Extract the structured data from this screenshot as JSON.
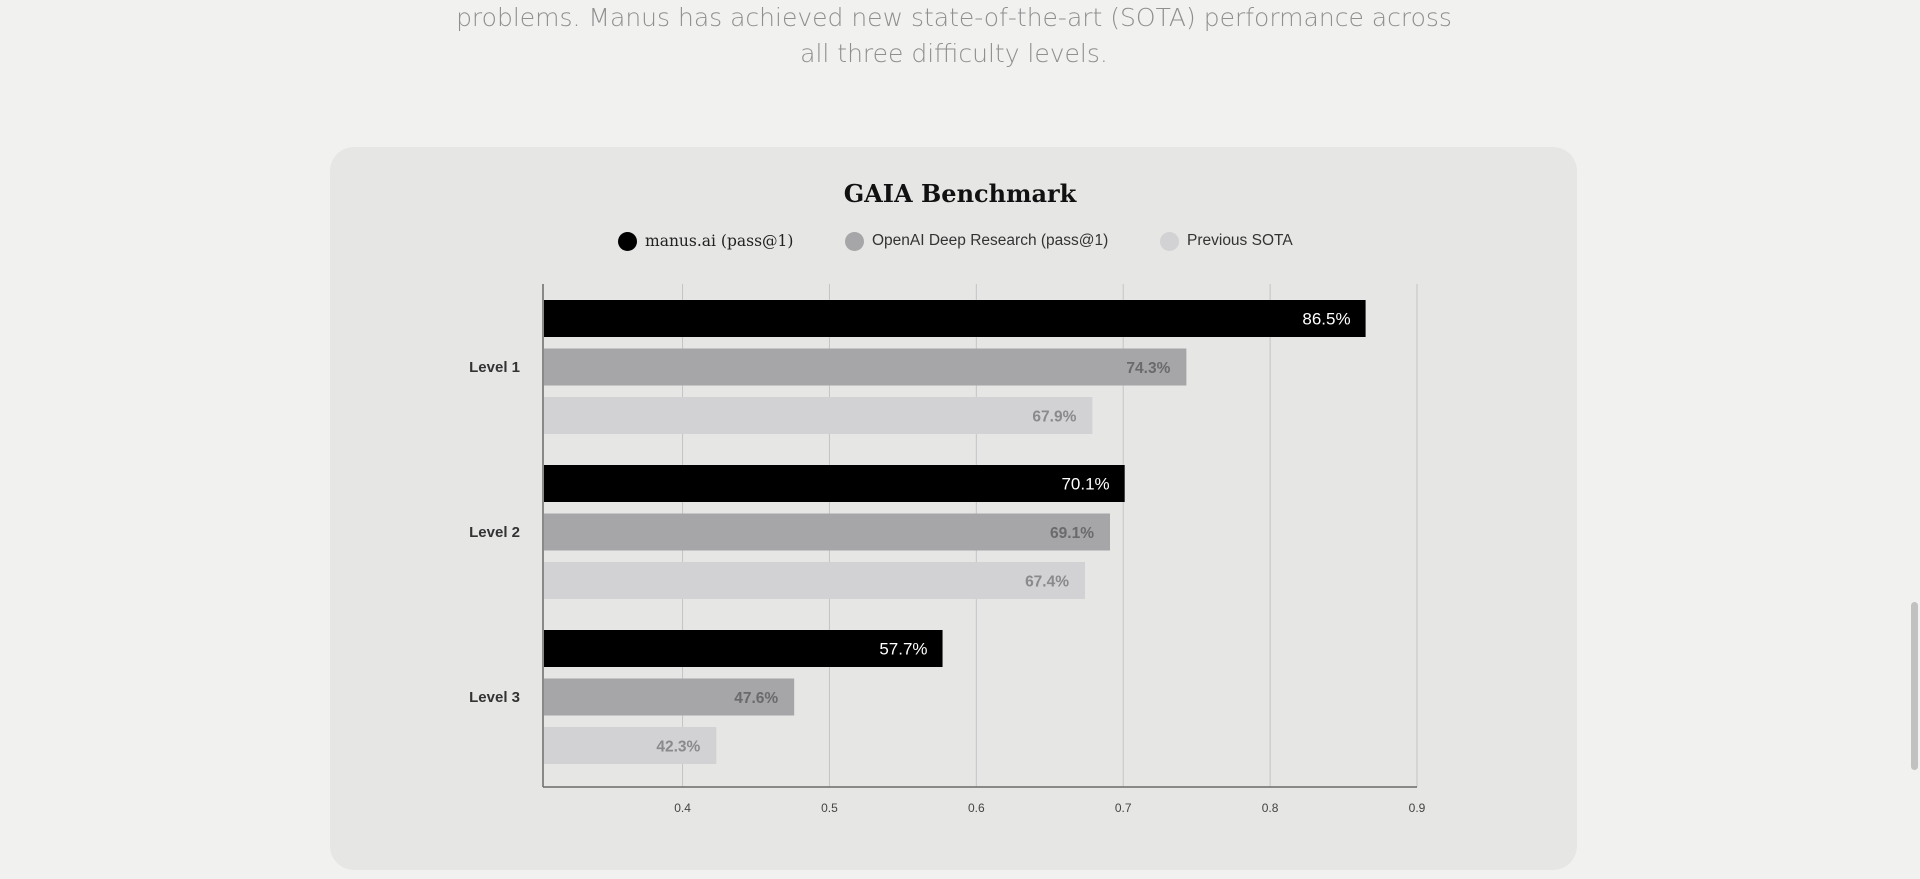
{
  "intro": {
    "line1": "problems. Manus has achieved new state-of-the-art (SOTA) performance across",
    "line2": "all three difficulty levels."
  },
  "chart_data": {
    "type": "bar",
    "orientation": "horizontal",
    "title": "GAIA Benchmark",
    "xlabel": "",
    "ylabel": "",
    "legend_position": "top-center",
    "categories": [
      "Level 1",
      "Level 2",
      "Level 3"
    ],
    "series": [
      {
        "name": "manus.ai (pass@1)",
        "color": "#000000",
        "label_color": "#ffffff",
        "values": [
          0.865,
          0.701,
          0.577
        ],
        "labels": [
          "86.5%",
          "70.1%",
          "57.7%"
        ]
      },
      {
        "name": "OpenAI Deep Research (pass@1)",
        "color": "#a6a6a8",
        "label_color": "#6a6a6c",
        "values": [
          0.743,
          0.691,
          0.476
        ],
        "labels": [
          "74.3%",
          "69.1%",
          "47.6%"
        ]
      },
      {
        "name": "Previous SOTA",
        "color": "#d2d2d4",
        "label_color": "#8a8a8c",
        "values": [
          0.679,
          0.674,
          0.423
        ],
        "labels": [
          "67.9%",
          "67.4%",
          "42.3%"
        ]
      }
    ],
    "xlim": [
      0.305,
      0.9
    ],
    "xticks": [
      0.4,
      0.5,
      0.6,
      0.7,
      0.8,
      0.9
    ],
    "xtick_labels": [
      "0.4",
      "0.5",
      "0.6",
      "0.7",
      "0.8",
      "0.9"
    ],
    "grid": true
  }
}
